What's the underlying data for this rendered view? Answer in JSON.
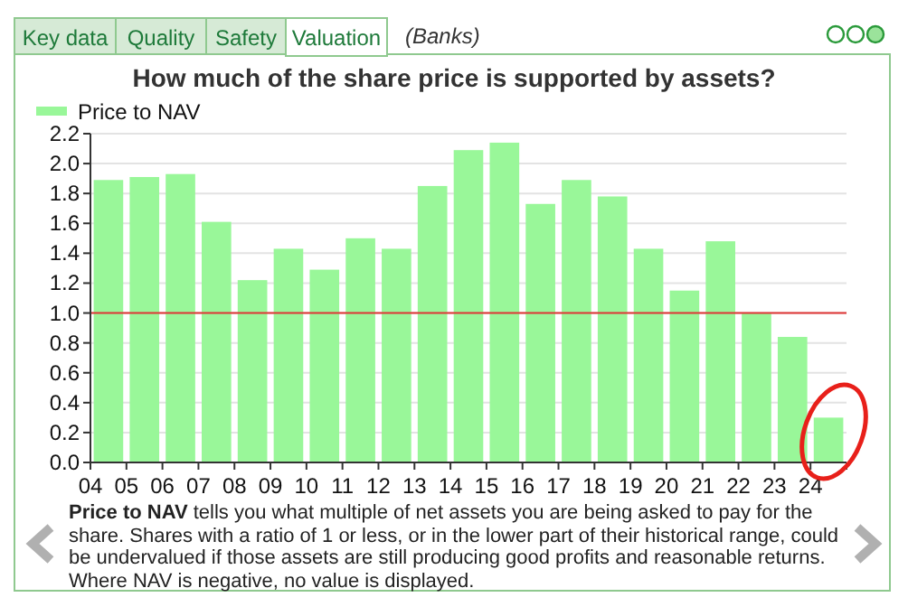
{
  "chart_data": {
    "type": "bar",
    "title": "How much of the share price is supported by assets?",
    "categories": [
      "04",
      "05",
      "06",
      "07",
      "08",
      "09",
      "10",
      "11",
      "12",
      "13",
      "14",
      "15",
      "16",
      "17",
      "18",
      "19",
      "20",
      "21",
      "22",
      "23",
      "24"
    ],
    "series": [
      {
        "name": "Price to NAV",
        "color": "#99f799",
        "values": [
          1.89,
          1.91,
          1.93,
          1.61,
          1.22,
          1.43,
          1.29,
          1.5,
          1.43,
          1.85,
          2.09,
          2.14,
          1.73,
          1.89,
          1.78,
          1.43,
          1.15,
          1.48,
          1.0,
          0.84,
          0.3
        ]
      }
    ],
    "ylim": [
      0,
      2.2
    ],
    "yticks": [
      {
        "value": 0,
        "label": "0.0"
      },
      0.2,
      0.4,
      0.6,
      0.8,
      {
        "value": 1,
        "label": "1.0"
      },
      1.2,
      1.4,
      1.6,
      1.8,
      {
        "value": 2,
        "label": "2.0"
      },
      2.2
    ],
    "grid": "y",
    "legend": "top left",
    "ref_lines": [
      {
        "axis": "y",
        "value": 1.0,
        "color": "#e03535"
      }
    ],
    "annotations": [
      "Key data",
      "Quality",
      "Safety",
      "Valuation",
      "(Banks)",
      "Price to NAV",
      " tells you what multiple of net assets you are being asked to pay for the share. Shares with a ratio of 1 or less, or in the lower part of their historical range, could be undervalued if those assets are still producing good profits and reasonable returns. Where NAV is negative, no value is displayed."
    ]
  }
}
